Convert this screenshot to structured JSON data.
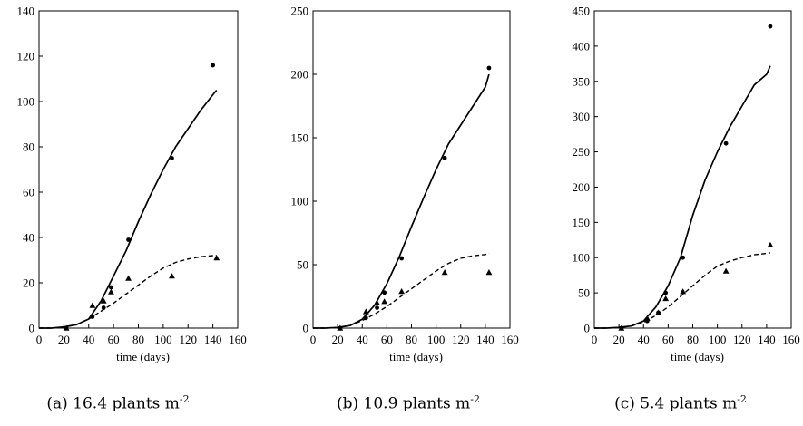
{
  "chart_data": [
    {
      "type": "scatter",
      "caption": {
        "letter": "(a)",
        "density": "16.4",
        "unit": "plants m",
        "exponent": "-2"
      },
      "xlabel": "time (days)",
      "ylabel": "",
      "xlim": [
        0,
        160
      ],
      "ylim": [
        0,
        140
      ],
      "xticks": [
        "0",
        "20",
        "40",
        "60",
        "80",
        "100",
        "120",
        "140",
        "160"
      ],
      "yticks": [
        "0",
        "20",
        "40",
        "60",
        "80",
        "100",
        "120",
        "140"
      ],
      "grid": false,
      "series": [
        {
          "marker": "circle",
          "x": [
            22,
            43,
            52,
            58,
            72,
            107,
            140
          ],
          "y": [
            0,
            5,
            9,
            18,
            39,
            75,
            116
          ]
        },
        {
          "marker": "triangle",
          "x": [
            22,
            43,
            52,
            58,
            72,
            107,
            143
          ],
          "y": [
            0,
            10,
            12,
            16,
            22,
            23,
            31
          ]
        },
        {
          "line": "solid",
          "x": [
            0,
            10,
            20,
            30,
            40,
            50,
            60,
            70,
            80,
            90,
            100,
            110,
            120,
            130,
            140,
            143
          ],
          "y": [
            0,
            0,
            0.5,
            1.5,
            4,
            12,
            23,
            34,
            47,
            59,
            70,
            80,
            88,
            96,
            103,
            105
          ]
        },
        {
          "line": "dashed",
          "x": [
            0,
            10,
            20,
            30,
            40,
            50,
            60,
            70,
            80,
            90,
            100,
            110,
            120,
            130,
            140,
            143
          ],
          "y": [
            0,
            0,
            0.5,
            1.5,
            4,
            7.5,
            11,
            15,
            19,
            23,
            26.5,
            29,
            30.5,
            31.5,
            32,
            32
          ]
        }
      ]
    },
    {
      "type": "scatter",
      "caption": {
        "letter": "(b)",
        "density": "10.9",
        "unit": "plants m",
        "exponent": "-2"
      },
      "xlabel": "time (days)",
      "ylabel": "",
      "xlim": [
        0,
        160
      ],
      "ylim": [
        0,
        250
      ],
      "xticks": [
        "0",
        "20",
        "40",
        "60",
        "80",
        "100",
        "120",
        "140",
        "160"
      ],
      "yticks": [
        "0",
        "50",
        "100",
        "150",
        "200",
        "250"
      ],
      "grid": false,
      "series": [
        {
          "marker": "circle",
          "x": [
            22,
            43,
            52,
            58,
            72,
            107,
            143
          ],
          "y": [
            0,
            8,
            16,
            28,
            55,
            134,
            205
          ]
        },
        {
          "marker": "triangle",
          "x": [
            22,
            43,
            52,
            58,
            72,
            107,
            143
          ],
          "y": [
            0,
            13,
            20,
            21,
            29,
            44,
            44
          ]
        },
        {
          "line": "solid",
          "x": [
            0,
            10,
            20,
            30,
            40,
            50,
            60,
            70,
            80,
            90,
            100,
            110,
            120,
            130,
            140,
            143
          ],
          "y": [
            0,
            0,
            0.5,
            2,
            7,
            18,
            35,
            56,
            80,
            103,
            125,
            145,
            160,
            175,
            190,
            200
          ]
        },
        {
          "line": "dashed",
          "x": [
            0,
            10,
            20,
            30,
            40,
            50,
            60,
            70,
            80,
            90,
            100,
            110,
            120,
            130,
            140,
            143
          ],
          "y": [
            0,
            0,
            0.5,
            2,
            6,
            11,
            17,
            24,
            31,
            38,
            45,
            51,
            55,
            57,
            58,
            59
          ]
        }
      ]
    },
    {
      "type": "scatter",
      "caption": {
        "letter": "(c)",
        "density": "5.4",
        "unit": "plants m",
        "exponent": "-2"
      },
      "xlabel": "time (days)",
      "ylabel": "",
      "xlim": [
        0,
        160
      ],
      "ylim": [
        0,
        450
      ],
      "xticks": [
        "0",
        "20",
        "40",
        "60",
        "80",
        "100",
        "120",
        "140",
        "160"
      ],
      "yticks": [
        "0",
        "50",
        "100",
        "150",
        "200",
        "250",
        "300",
        "350",
        "400",
        "450"
      ],
      "grid": false,
      "series": [
        {
          "marker": "circle",
          "x": [
            22,
            43,
            52,
            58,
            72,
            107,
            143
          ],
          "y": [
            0,
            10,
            22,
            50,
            100,
            262,
            428
          ]
        },
        {
          "marker": "triangle",
          "x": [
            22,
            43,
            52,
            58,
            72,
            107,
            143
          ],
          "y": [
            0,
            14,
            22,
            42,
            52,
            81,
            118
          ]
        },
        {
          "line": "solid",
          "x": [
            0,
            10,
            20,
            30,
            40,
            50,
            60,
            70,
            80,
            90,
            100,
            110,
            120,
            130,
            140,
            143
          ],
          "y": [
            0,
            0,
            1,
            3,
            10,
            30,
            60,
            100,
            160,
            210,
            250,
            285,
            315,
            345,
            360,
            372
          ]
        },
        {
          "line": "dashed",
          "x": [
            0,
            10,
            20,
            30,
            40,
            50,
            60,
            70,
            80,
            90,
            100,
            110,
            120,
            130,
            140,
            143
          ],
          "y": [
            0,
            0,
            1,
            3,
            8,
            18,
            30,
            45,
            60,
            75,
            88,
            95,
            100,
            104,
            106,
            107
          ]
        }
      ]
    }
  ]
}
